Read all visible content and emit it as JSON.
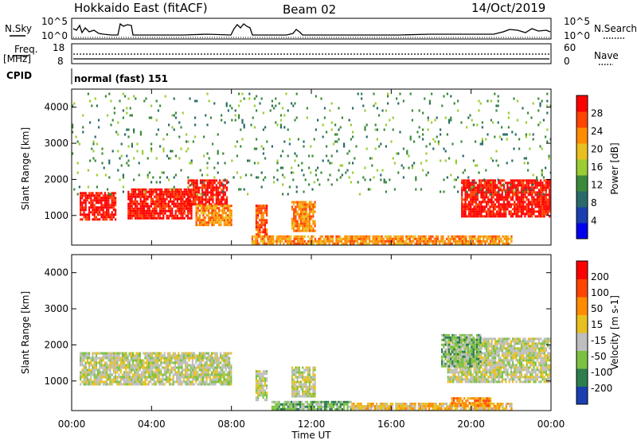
{
  "header": {
    "title": "Hokkaido East (fitACF)",
    "beam": "Beam 02",
    "date": "14/Oct/2019"
  },
  "top_panels": {
    "nsky_label": "N.Sky",
    "nsky_ticks": [
      "10^5",
      "10^0"
    ],
    "nsearch_label": "N.Search",
    "nsearch_ticks": [
      "10^5",
      "10^0"
    ],
    "freq_label": "Freq.",
    "freq_unit": "[MHz]",
    "freq_ticks": [
      "18",
      "8"
    ],
    "nave_label": "Nave",
    "nave_ticks": [
      "60",
      "0"
    ],
    "cpid_label": "CPID",
    "cpid_text": "normal (fast) 151"
  },
  "chart_data": [
    {
      "type": "heatmap",
      "name": "power",
      "ylabel": "Slant Range [km]",
      "yticks": [
        "4000",
        "3000",
        "2000",
        "1000"
      ],
      "ylim": [
        180,
        4500
      ],
      "xlim": [
        0,
        24
      ],
      "colorbar_label": "Power [dB]",
      "colorbar_ticks": [
        "28",
        "24",
        "20",
        "16",
        "12",
        "8",
        "4"
      ],
      "colorbar_colors": [
        "#0000ee",
        "#1a3fb0",
        "#2a6a6a",
        "#3a8a3a",
        "#9acd32",
        "#e8c020",
        "#ff8c00",
        "#ff4500",
        "#ff0000"
      ],
      "regions": [
        {
          "t0": 0.4,
          "t1": 2.2,
          "r0": 900,
          "r1": 1650,
          "level": 8
        },
        {
          "t0": 2.8,
          "t1": 6.0,
          "r0": 950,
          "r1": 1750,
          "level": 8
        },
        {
          "t0": 5.8,
          "t1": 7.8,
          "r0": 1300,
          "r1": 2000,
          "level": 8
        },
        {
          "t0": 6.2,
          "t1": 8.0,
          "r0": 750,
          "r1": 1300,
          "level": 6
        },
        {
          "t0": 9.2,
          "t1": 9.8,
          "r0": 500,
          "r1": 1300,
          "level": 7
        },
        {
          "t0": 11.0,
          "t1": 12.2,
          "r0": 600,
          "r1": 1400,
          "level": 6
        },
        {
          "t0": 19.5,
          "t1": 24.0,
          "r0": 1000,
          "r1": 2000,
          "level": 8
        },
        {
          "t0": 9.0,
          "t1": 22.0,
          "r0": 180,
          "r1": 450,
          "level": 6
        },
        {
          "t0": 0.0,
          "t1": 24.0,
          "r0": 1600,
          "r1": 4400,
          "level": 3
        }
      ]
    },
    {
      "type": "heatmap",
      "name": "velocity",
      "ylabel": "Slant Range [km]",
      "yticks": [
        "4000",
        "3000",
        "2000",
        "1000"
      ],
      "ylim": [
        180,
        4500
      ],
      "xlim": [
        0,
        24
      ],
      "xticks": [
        "00:00",
        "04:00",
        "08:00",
        "12:00",
        "16:00",
        "20:00",
        "00:00"
      ],
      "xlabel": "Time UT",
      "colorbar_label": "Velocity [m s-1]",
      "colorbar_ticks": [
        "200",
        "100",
        "50",
        "15",
        "-15",
        "-50",
        "-100",
        "-200"
      ],
      "colorbar_colors": [
        "#1a3fb0",
        "#2e7d4f",
        "#7cc242",
        "#bebebe",
        "#e8c020",
        "#ff8c00",
        "#ff4500",
        "#ff0000"
      ],
      "regions": [
        {
          "t0": 0.4,
          "t1": 8.0,
          "r0": 900,
          "r1": 1800,
          "level": 3
        },
        {
          "t0": 9.2,
          "t1": 9.8,
          "r0": 500,
          "r1": 1300,
          "level": 3
        },
        {
          "t0": 11.0,
          "t1": 12.2,
          "r0": 600,
          "r1": 1400,
          "level": 3
        },
        {
          "t0": 18.8,
          "t1": 24.0,
          "r0": 1000,
          "r1": 2200,
          "level": 3
        },
        {
          "t0": 18.5,
          "t1": 20.5,
          "r0": 1400,
          "r1": 2300,
          "level": 2
        },
        {
          "t0": 10.0,
          "t1": 14.0,
          "r0": 200,
          "r1": 450,
          "level": 2
        },
        {
          "t0": 14.0,
          "t1": 22.0,
          "r0": 180,
          "r1": 400,
          "level": 4
        },
        {
          "t0": 19.0,
          "t1": 21.0,
          "r0": 350,
          "r1": 550,
          "level": 5
        }
      ]
    }
  ]
}
